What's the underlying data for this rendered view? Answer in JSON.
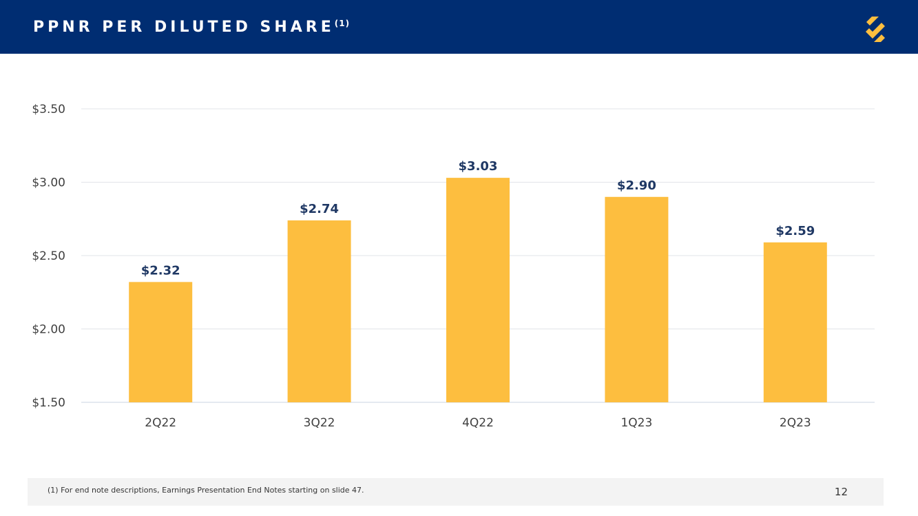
{
  "header": {
    "title": "PPNR PER DILUTED SHARE",
    "title_superscript": "(1)",
    "logo_icon": "bank-s-logo-icon",
    "background_color": "#002d72",
    "logo_color": "#fdbe3f"
  },
  "chart_data": {
    "type": "bar",
    "categories": [
      "2Q22",
      "3Q22",
      "4Q22",
      "1Q23",
      "2Q23"
    ],
    "values": [
      2.32,
      2.74,
      3.03,
      2.9,
      2.59
    ],
    "value_labels": [
      "$2.32",
      "$2.74",
      "$3.03",
      "$2.90",
      "$2.59"
    ],
    "ylim": [
      1.5,
      3.5
    ],
    "yticks": [
      1.5,
      2.0,
      2.5,
      3.0,
      3.5
    ],
    "ytick_labels": [
      "$1.50",
      "$2.00",
      "$2.50",
      "$3.00",
      "$3.50"
    ],
    "grid": true,
    "bar_color": "#fdbe3f",
    "label_color": "#1f3864"
  },
  "footer": {
    "footnote": "(1)  For end note descriptions, Earnings Presentation End Notes starting on slide 47.",
    "page_number": "12"
  }
}
